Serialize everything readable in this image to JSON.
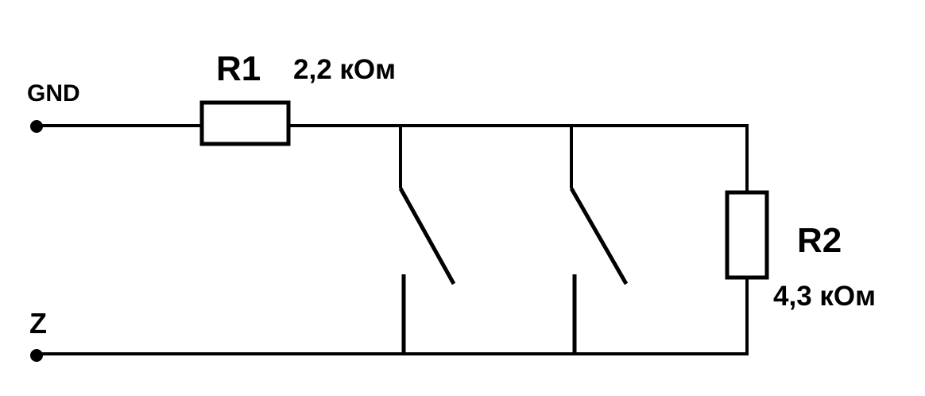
{
  "terminals": {
    "top": "GND",
    "bottom": "Z"
  },
  "resistors": [
    {
      "ref": "R1",
      "value": "2,2 кОм"
    },
    {
      "ref": "R2",
      "value": "4,3 кОм"
    }
  ],
  "switches": [
    {
      "state": "open"
    },
    {
      "state": "open"
    }
  ]
}
